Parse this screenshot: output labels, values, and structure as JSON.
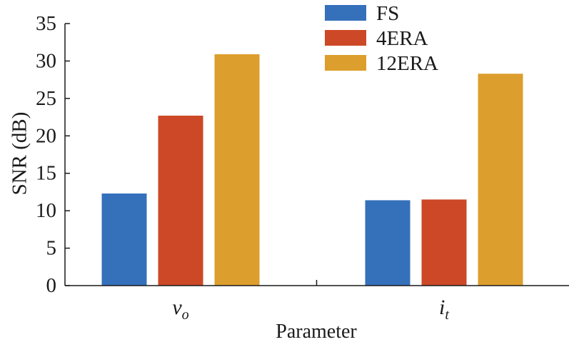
{
  "chart_data": {
    "type": "bar",
    "title": "",
    "xlabel": "Parameter",
    "ylabel": "SNR (dB)",
    "ylim": [
      0,
      35
    ],
    "yticks": [
      0,
      5,
      10,
      15,
      20,
      25,
      30,
      35
    ],
    "categories": [
      {
        "main": "v",
        "sub": "o"
      },
      {
        "main": "i",
        "sub": "t"
      }
    ],
    "series": [
      {
        "name": "FS",
        "color": "#3570bb",
        "values": [
          12.3,
          11.4
        ]
      },
      {
        "name": "4ERA",
        "color": "#cc4826",
        "values": [
          22.7,
          11.5
        ]
      },
      {
        "name": "12ERA",
        "color": "#dc9e2c",
        "values": [
          30.9,
          28.3
        ]
      }
    ],
    "legend_position": "top-right",
    "grid": false
  }
}
